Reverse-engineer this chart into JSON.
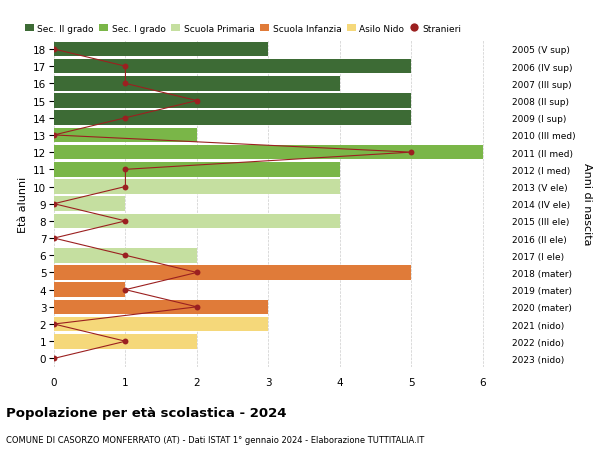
{
  "ages": [
    18,
    17,
    16,
    15,
    14,
    13,
    12,
    11,
    10,
    9,
    8,
    7,
    6,
    5,
    4,
    3,
    2,
    1,
    0
  ],
  "years": [
    "2005 (V sup)",
    "2006 (IV sup)",
    "2007 (III sup)",
    "2008 (II sup)",
    "2009 (I sup)",
    "2010 (III med)",
    "2011 (II med)",
    "2012 (I med)",
    "2013 (V ele)",
    "2014 (IV ele)",
    "2015 (III ele)",
    "2016 (II ele)",
    "2017 (I ele)",
    "2018 (mater)",
    "2019 (mater)",
    "2020 (mater)",
    "2021 (nido)",
    "2022 (nido)",
    "2023 (nido)"
  ],
  "bar_values": [
    3,
    5,
    4,
    5,
    5,
    2,
    6,
    4,
    4,
    1,
    4,
    0,
    2,
    5,
    1,
    3,
    3,
    2,
    0
  ],
  "bar_colors": [
    "#3d6b35",
    "#3d6b35",
    "#3d6b35",
    "#3d6b35",
    "#3d6b35",
    "#7ab648",
    "#7ab648",
    "#7ab648",
    "#c5dfa0",
    "#c5dfa0",
    "#c5dfa0",
    "#c5dfa0",
    "#c5dfa0",
    "#e07b39",
    "#e07b39",
    "#e07b39",
    "#f5d87a",
    "#f5d87a",
    "#f5d87a"
  ],
  "stranieri": [
    0,
    1,
    1,
    2,
    1,
    0,
    5,
    1,
    1,
    0,
    1,
    0,
    1,
    2,
    1,
    2,
    0,
    1,
    0
  ],
  "title": "Popolazione per età scolastica - 2024",
  "subtitle": "COMUNE DI CASORZO MONFERRATO (AT) - Dati ISTAT 1° gennaio 2024 - Elaborazione TUTTITALIA.IT",
  "ylabel_left": "Età alunni",
  "ylabel_right": "Anni di nascita",
  "legend_labels": [
    "Sec. II grado",
    "Sec. I grado",
    "Scuola Primaria",
    "Scuola Infanzia",
    "Asilo Nido",
    "Stranieri"
  ],
  "legend_colors": [
    "#3d6b35",
    "#7ab648",
    "#c5dfa0",
    "#e07b39",
    "#f5d87a",
    "#9b2020"
  ],
  "color_stranieri": "#9b2020",
  "bg_color": "#ffffff",
  "grid_color": "#cccccc",
  "xlim": [
    0,
    6.3
  ],
  "ylim": [
    -0.5,
    18.5
  ]
}
